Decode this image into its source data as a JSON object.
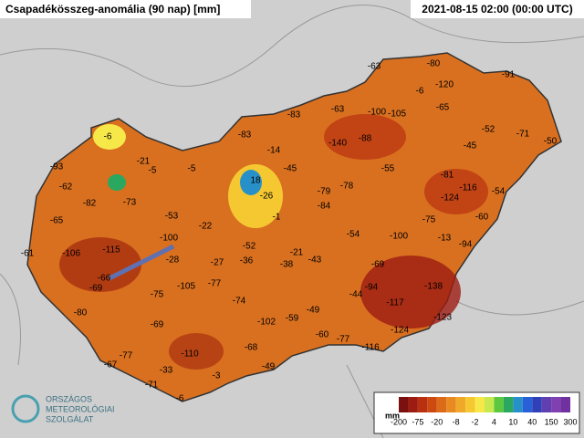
{
  "header": {
    "title": "Csapadékösszeg-anomália (90 nap) [mm]",
    "timestamp": "2021-08-15 02:00 (00:00 UTC)"
  },
  "stations": [
    -63,
    -80,
    -91,
    -6,
    -120,
    -83,
    -63,
    -100,
    -105,
    -65,
    -52,
    -71,
    -50,
    -6,
    -83,
    -14,
    -140,
    -88,
    -45,
    -93,
    -21,
    -5,
    -5,
    -45,
    -55,
    -81,
    18,
    -62,
    -82,
    -73,
    -26,
    -79,
    -78,
    -116,
    -54,
    -124,
    -65,
    -53,
    -22,
    -1,
    -84,
    -75,
    -60,
    -100,
    -52,
    -54,
    -100,
    -13,
    -94,
    -61,
    -106,
    -115,
    -28,
    -27,
    -36,
    -21,
    -38,
    -43,
    -69,
    -66,
    -69,
    -105,
    -77,
    -94,
    -138,
    -75,
    -74,
    -44,
    -117,
    -80,
    -49,
    -123,
    -69,
    -102,
    -59,
    -60,
    -77,
    -124,
    -116,
    -77,
    -110,
    -68,
    -67,
    -33,
    -49,
    -3,
    -71,
    -6
  ],
  "colorbar": {
    "unit": "mm",
    "ticks": [
      -200,
      -75,
      -20,
      -8,
      -2,
      4,
      10,
      40,
      150,
      300
    ],
    "colors": [
      "#7a1010",
      "#9c1c12",
      "#b8300f",
      "#cc4a12",
      "#dc6a18",
      "#e88a20",
      "#f0a828",
      "#f5c832",
      "#f7e84a",
      "#c8e850",
      "#5cc840",
      "#2aa860",
      "#2890c8",
      "#2860d8",
      "#3040b8",
      "#6040b0",
      "#8040b0",
      "#7030a0"
    ]
  },
  "logo": {
    "line1": "ORSZÁGOS",
    "line2": "METEOROLÓGIAI",
    "line3": "SZOLGÁLAT"
  }
}
